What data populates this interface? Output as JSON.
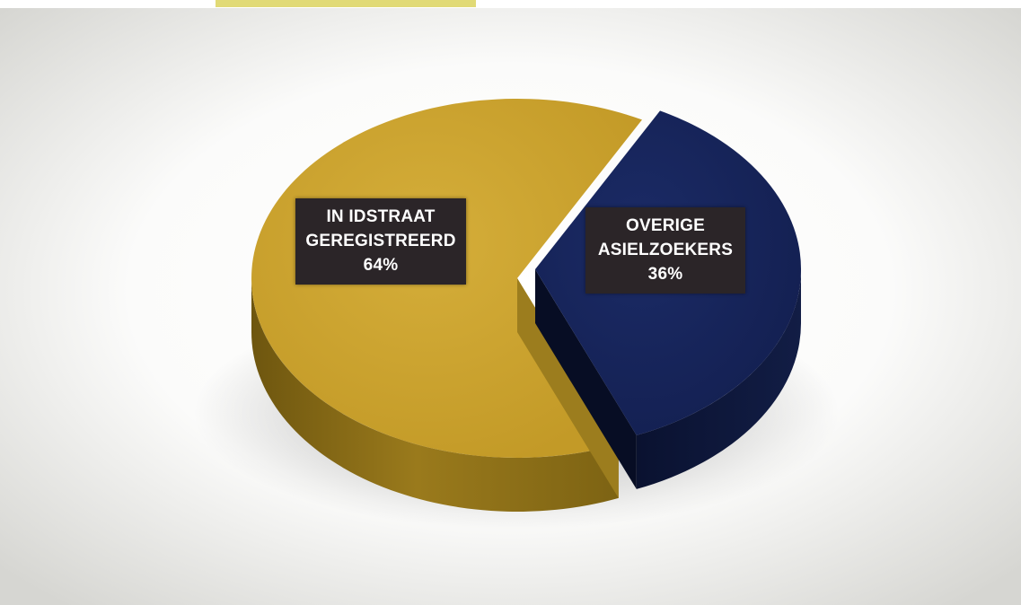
{
  "chart_data": {
    "type": "pie",
    "style": "3d-exploded",
    "title": "",
    "slices": [
      {
        "label_lines": [
          "IN IDSTRAAT",
          "GEREGISTREERD"
        ],
        "percent_label": "64%",
        "value": 64,
        "color": "#c7a12d",
        "side_color": "#8a6d16"
      },
      {
        "label_lines": [
          "OVERIGE",
          "ASIELZOEKERS"
        ],
        "percent_label": "36%",
        "value": 36,
        "color": "#16255a",
        "side_color": "#0b1433"
      }
    ],
    "legend": "none",
    "data_labels": "inside-slice"
  },
  "theme": {
    "top_border_color": "#d9d05a",
    "background_center": "#ffffff",
    "background_edge": "#d7d7d3"
  }
}
